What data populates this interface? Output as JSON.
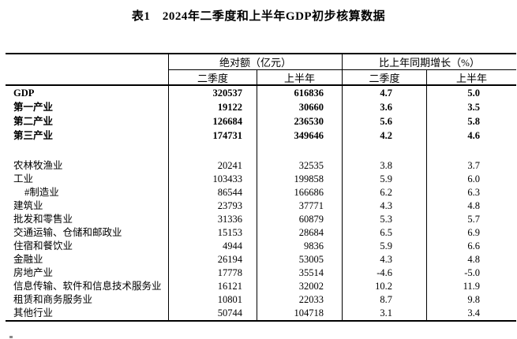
{
  "title": "表1　2024年二季度和上半年GDP初步核算数据",
  "colors": {
    "text": "#000000",
    "border": "#000000",
    "background": "#ffffff"
  },
  "table": {
    "groups": [
      {
        "label": "绝对额（亿元）"
      },
      {
        "label": "比上年同期增长（%）"
      }
    ],
    "sub_headers": [
      "二季度",
      "上半年",
      "二季度",
      "上半年"
    ],
    "rows": [
      {
        "label": "GDP",
        "abs_q2": "320537",
        "abs_h1": "616836",
        "growth_q2": "4.7",
        "growth_h1": "5.0"
      },
      {
        "label": "第一产业",
        "abs_q2": "19122",
        "abs_h1": "30660",
        "growth_q2": "3.6",
        "growth_h1": "3.5"
      },
      {
        "label": "第二产业",
        "abs_q2": "126684",
        "abs_h1": "236530",
        "growth_q2": "5.6",
        "growth_h1": "5.8"
      },
      {
        "label": "第三产业",
        "abs_q2": "174731",
        "abs_h1": "349646",
        "growth_q2": "4.2",
        "growth_h1": "4.6"
      },
      {
        "label": "农林牧渔业",
        "abs_q2": "20241",
        "abs_h1": "32535",
        "growth_q2": "3.8",
        "growth_h1": "3.7"
      },
      {
        "label": "工业",
        "abs_q2": "103433",
        "abs_h1": "199858",
        "growth_q2": "5.9",
        "growth_h1": "6.0"
      },
      {
        "label": "#制造业",
        "abs_q2": "86544",
        "abs_h1": "166686",
        "growth_q2": "6.2",
        "growth_h1": "6.3"
      },
      {
        "label": "建筑业",
        "abs_q2": "23793",
        "abs_h1": "37771",
        "growth_q2": "4.3",
        "growth_h1": "4.8"
      },
      {
        "label": "批发和零售业",
        "abs_q2": "31336",
        "abs_h1": "60879",
        "growth_q2": "5.3",
        "growth_h1": "5.7"
      },
      {
        "label": "交通运输、仓储和邮政业",
        "abs_q2": "15153",
        "abs_h1": "28684",
        "growth_q2": "6.5",
        "growth_h1": "6.9"
      },
      {
        "label": "住宿和餐饮业",
        "abs_q2": "4944",
        "abs_h1": "9836",
        "growth_q2": "5.9",
        "growth_h1": "6.6"
      },
      {
        "label": "金融业",
        "abs_q2": "26194",
        "abs_h1": "53005",
        "growth_q2": "4.3",
        "growth_h1": "4.8"
      },
      {
        "label": "房地产业",
        "abs_q2": "17778",
        "abs_h1": "35514",
        "growth_q2": "-4.6",
        "growth_h1": "-5.0"
      },
      {
        "label": "信息传输、软件和信息技术服务业",
        "abs_q2": "16121",
        "abs_h1": "32002",
        "growth_q2": "10.2",
        "growth_h1": "11.9"
      },
      {
        "label": "租赁和商务服务业",
        "abs_q2": "10801",
        "abs_h1": "22033",
        "growth_q2": "8.7",
        "growth_h1": "9.8"
      },
      {
        "label": "其他行业",
        "abs_q2": "50744",
        "abs_h1": "104718",
        "growth_q2": "3.1",
        "growth_h1": "3.4"
      }
    ]
  }
}
